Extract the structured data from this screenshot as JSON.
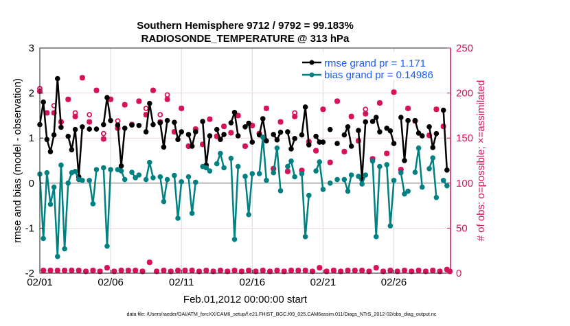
{
  "chart_data": {
    "type": "line",
    "title": [
      "Southern Hemisphere 9712 / 9792 = 99.183%",
      "RADIOSONDE_TEMPERATURE @ 313 hPa"
    ],
    "xlabel": "Feb.01,2012 00:00:00 start",
    "ylabel": "rmse and bias (model - observation)",
    "y2label": "# of obs: o=possible; ×=assimilated",
    "footnote": "data file: /Users/raeder/DAI/ATM_forcXX/CAM6_setup/f.e21.FHIST_BGC.f09_025.CAM6assim.011/Diags_NTrS_2012-02/obs_diag_output.nc",
    "xlim_days": [
      0,
      29
    ],
    "ylim": [
      -2,
      3
    ],
    "y2lim": [
      0,
      250
    ],
    "x_ticks": [
      {
        "day": 0,
        "label": "02/01"
      },
      {
        "day": 5,
        "label": "02/06"
      },
      {
        "day": 10,
        "label": "02/11"
      },
      {
        "day": 15,
        "label": "02/16"
      },
      {
        "day": 20,
        "label": "02/21"
      },
      {
        "day": 25,
        "label": "02/26"
      }
    ],
    "y_ticks": [
      "-2",
      "-1",
      "0",
      "1",
      "2",
      "3"
    ],
    "y2_ticks": [
      "0",
      "50",
      "100",
      "150",
      "200",
      "250"
    ],
    "legend": {
      "placement": "top-right",
      "entries": [
        "rmse grand pr = 1.171",
        "bias grand pr = 0.14986"
      ]
    },
    "colors": {
      "rmse": "#000000",
      "bias": "#008080",
      "obs": "#d6125a",
      "legend_text": "#1a5cff",
      "grid": "#d9d9d9",
      "hgrid": "#f0d4de"
    },
    "series": [
      {
        "name": "rmse",
        "points": [
          [
            0,
            1.3
          ],
          [
            0.25,
            1.8
          ],
          [
            0.5,
            0.97
          ],
          [
            0.75,
            0.7
          ],
          [
            1,
            1.07
          ],
          [
            1.25,
            2.32
          ],
          [
            1.5,
            1.24
          ],
          [
            2,
            1.04
          ],
          [
            2.25,
            0.74
          ],
          [
            2.5,
            1.19
          ],
          [
            2.75,
            0.14
          ],
          [
            3,
            1.25
          ],
          [
            3.5,
            1.2
          ],
          [
            4,
            1.2
          ],
          [
            4.5,
            1.3
          ],
          [
            4.75,
            1.9
          ],
          [
            5,
            1.39
          ],
          [
            5.5,
            1.29
          ],
          [
            5.75,
            0.38
          ],
          [
            6,
            1.22
          ],
          [
            6.5,
            1.29
          ],
          [
            7,
            1.28
          ],
          [
            7.5,
            1.14
          ],
          [
            7.75,
            1.77
          ],
          [
            8,
            1.3
          ],
          [
            8.5,
            1.34
          ],
          [
            8.75,
            0.8
          ],
          [
            9,
            1.39
          ],
          [
            9.5,
            1.35
          ],
          [
            9.75,
            0.97
          ],
          [
            10,
            1.14
          ],
          [
            10.5,
            1.08
          ],
          [
            10.75,
            0.82
          ],
          [
            11,
            1.14
          ],
          [
            11.5,
            1.37
          ],
          [
            11.75,
            0.4
          ],
          [
            12,
            1.05
          ],
          [
            12.5,
            1.19
          ],
          [
            12.75,
            0.97
          ],
          [
            13,
            1.08
          ],
          [
            13.5,
            1.34
          ],
          [
            13.75,
            1.57
          ],
          [
            14,
            1.05
          ],
          [
            14.5,
            1.25
          ],
          [
            14.75,
            1.33
          ],
          [
            15,
            0.91
          ],
          [
            15.5,
            1.07
          ],
          [
            15.75,
            1.43
          ],
          [
            16,
            0.94
          ],
          [
            16.5,
            1.08
          ],
          [
            16.75,
            0.96
          ],
          [
            17,
            1.13
          ],
          [
            17.5,
            1.14
          ],
          [
            17.75,
            0.76
          ],
          [
            18,
            0.99
          ],
          [
            18.5,
            1.07
          ],
          [
            18.75,
            1.69
          ],
          [
            19,
            0.85
          ],
          [
            19.5,
            1.04
          ],
          [
            19.75,
            0.91
          ],
          [
            20,
            0.91
          ],
          [
            20.5,
            1.19
          ],
          [
            21,
            0.88
          ],
          [
            21.5,
            1.07
          ],
          [
            21.75,
            1.25
          ],
          [
            22,
            0.82
          ],
          [
            22.5,
            1.17
          ],
          [
            22.75,
            0.09
          ],
          [
            23,
            1.36
          ],
          [
            23.5,
            1.37
          ],
          [
            23.75,
            1.46
          ],
          [
            24,
            1.14
          ],
          [
            24.5,
            1.22
          ],
          [
            24.75,
            1.16
          ],
          [
            25,
            0.88
          ],
          [
            25.5,
            1.46
          ],
          [
            25.75,
            0.5
          ],
          [
            26,
            1.39
          ],
          [
            26.5,
            1.39
          ],
          [
            26.75,
            1.11
          ],
          [
            27,
            1.05
          ],
          [
            27.5,
            1.25
          ],
          [
            27.75,
            0.79
          ],
          [
            28,
            1.1
          ],
          [
            28.5,
            1.62
          ],
          [
            28.75,
            0.29
          ]
        ]
      },
      {
        "name": "bias",
        "points": [
          [
            0,
            0.2
          ],
          [
            0.25,
            -1.23
          ],
          [
            0.5,
            0.23
          ],
          [
            0.75,
            -0.47
          ],
          [
            1,
            -0.09
          ],
          [
            1.25,
            -1.63
          ],
          [
            1.5,
            0.4
          ],
          [
            1.75,
            -1.46
          ],
          [
            2,
            0
          ],
          [
            2.25,
            0.23
          ],
          [
            2.5,
            0.26
          ],
          [
            2.75,
            0.08
          ],
          [
            3,
            0.06
          ],
          [
            3.5,
            0.06
          ],
          [
            3.75,
            -0.46
          ],
          [
            4,
            0.3
          ],
          [
            4.5,
            0.34
          ],
          [
            4.75,
            -1.4
          ],
          [
            5,
            0.3
          ],
          [
            5.5,
            0.3
          ],
          [
            5.75,
            0.27
          ],
          [
            6,
            0.08
          ],
          [
            6.5,
            0.24
          ],
          [
            6.75,
            0.12
          ],
          [
            7,
            0.18
          ],
          [
            7.5,
            0.08
          ],
          [
            7.75,
            0.46
          ],
          [
            8,
            0.12
          ],
          [
            8.5,
            0.14
          ],
          [
            8.75,
            -0.41
          ],
          [
            9,
            0.08
          ],
          [
            9.5,
            0.17
          ],
          [
            9.75,
            -0.78
          ],
          [
            10,
            0.03
          ],
          [
            10.5,
            0.14
          ],
          [
            10.75,
            -0.67
          ],
          [
            11,
            0.02
          ],
          [
            11.5,
            0.37
          ],
          [
            11.75,
            0.34
          ],
          [
            12,
            0.27
          ],
          [
            12.5,
            0.43
          ],
          [
            12.75,
            0.66
          ],
          [
            13,
            0.34
          ],
          [
            13.5,
            0.55
          ],
          [
            13.75,
            -1.25
          ],
          [
            14,
            0.37
          ],
          [
            14.5,
            0.15
          ],
          [
            14.75,
            -0.7
          ],
          [
            15,
            0.21
          ],
          [
            15.5,
            0.21
          ],
          [
            15.75,
            1.02
          ],
          [
            16,
            0.06
          ],
          [
            16.5,
            0.23
          ],
          [
            16.75,
            0.78
          ],
          [
            17,
            -0.17
          ],
          [
            17.5,
            0.37
          ],
          [
            17.75,
            0.49
          ],
          [
            18,
            0.14
          ],
          [
            18.5,
            0.21
          ],
          [
            18.75,
            -1.19
          ],
          [
            19,
            -0.27
          ],
          [
            19.5,
            0.27
          ],
          [
            19.75,
            0.47
          ],
          [
            20,
            -0.14
          ],
          [
            20.5,
            0
          ],
          [
            21,
            0.08
          ],
          [
            21.5,
            0.08
          ],
          [
            21.75,
            -0.18
          ],
          [
            22,
            0.18
          ],
          [
            22.5,
            0.15
          ],
          [
            22.75,
            -0.02
          ],
          [
            23,
            0.18
          ],
          [
            23.5,
            0.49
          ],
          [
            23.75,
            -1.19
          ],
          [
            24,
            0.37
          ],
          [
            24.5,
            0.41
          ],
          [
            24.75,
            -0.95
          ],
          [
            25,
            0.06
          ],
          [
            25.5,
            0.23
          ],
          [
            25.75,
            -0.24
          ],
          [
            26,
            -0.18
          ],
          [
            26.5,
            0.24
          ],
          [
            26.75,
            0.78
          ],
          [
            27,
            -0.09
          ],
          [
            27.5,
            0.32
          ],
          [
            27.75,
            0.56
          ],
          [
            28,
            -0.32
          ],
          [
            28.5,
            0.06
          ],
          [
            28.75,
            -0.06
          ]
        ]
      }
    ],
    "obs_upper": {
      "days": [
        0,
        0.5,
        1,
        1.5,
        2,
        2.5,
        3,
        3.5,
        4,
        4.5,
        5,
        5.5,
        6,
        6.5,
        7,
        7.5,
        8,
        8.5,
        9,
        9.5,
        10,
        10.5,
        11,
        11.5,
        12,
        12.5,
        13,
        13.5,
        14,
        14.5,
        15,
        15.5,
        16,
        16.5,
        17,
        17.5,
        18,
        18.5,
        19,
        19.5,
        20,
        20.5,
        21,
        21.5,
        22,
        22.5,
        23,
        23.5,
        24,
        24.5,
        25,
        25.5,
        26,
        26.5,
        27,
        27.5,
        28,
        28.5
      ],
      "assimilated": [
        202,
        178,
        178,
        168,
        193,
        174,
        217,
        168,
        203,
        149,
        193,
        161,
        187,
        165,
        191,
        176,
        203,
        168,
        193,
        157,
        183,
        141,
        160,
        143,
        171,
        152,
        163,
        156,
        175,
        141,
        164,
        155,
        183,
        116,
        168,
        113,
        174,
        114,
        146,
        136,
        182,
        123,
        191,
        135,
        174,
        147,
        177,
        127,
        189,
        133,
        201,
        115,
        183,
        169,
        229,
        153,
        182,
        163
      ],
      "possible": [
        205,
        178,
        186,
        168,
        193,
        178,
        217,
        176,
        203,
        155,
        193,
        169,
        187,
        165,
        191,
        183,
        203,
        176,
        198,
        157,
        183,
        141,
        160,
        143,
        171,
        152,
        163,
        156,
        175,
        141,
        164,
        155,
        183,
        116,
        168,
        113,
        178,
        114,
        146,
        136,
        182,
        123,
        191,
        135,
        174,
        147,
        182,
        127,
        189,
        133,
        201,
        115,
        183,
        169,
        229,
        153,
        182,
        163
      ]
    },
    "obs_lower": {
      "days": [
        0.25,
        0.75,
        1.25,
        1.75,
        2.25,
        2.75,
        3.25,
        3.75,
        4.25,
        4.75,
        5.25,
        5.75,
        6.25,
        6.75,
        7.25,
        7.75,
        8.25,
        8.75,
        9.25,
        9.75,
        10.25,
        10.75,
        11.25,
        11.75,
        12.25,
        12.75,
        13.25,
        13.75,
        14.25,
        14.75,
        15.25,
        15.75,
        16.25,
        16.75,
        17.25,
        17.75,
        18.25,
        18.75,
        19.25,
        19.75,
        20.25,
        20.75,
        21.25,
        21.75,
        22.25,
        22.75,
        23.25,
        23.75,
        24.25,
        24.75,
        25.25,
        25.75,
        26.25,
        26.75,
        27.25,
        27.75,
        28.25,
        28.75,
        29
      ],
      "values": [
        3,
        3,
        3,
        3,
        3,
        3,
        2,
        3,
        2,
        6,
        2,
        3,
        3,
        3,
        2,
        12,
        2,
        3,
        2,
        3,
        3,
        3,
        2,
        3,
        2,
        3,
        2,
        3,
        2,
        3,
        2,
        3,
        2,
        3,
        2,
        3,
        3,
        3,
        2,
        6,
        2,
        3,
        2,
        3,
        3,
        3,
        2,
        6,
        2,
        3,
        2,
        3,
        2,
        3,
        2,
        3,
        2,
        4,
        2
      ]
    }
  }
}
